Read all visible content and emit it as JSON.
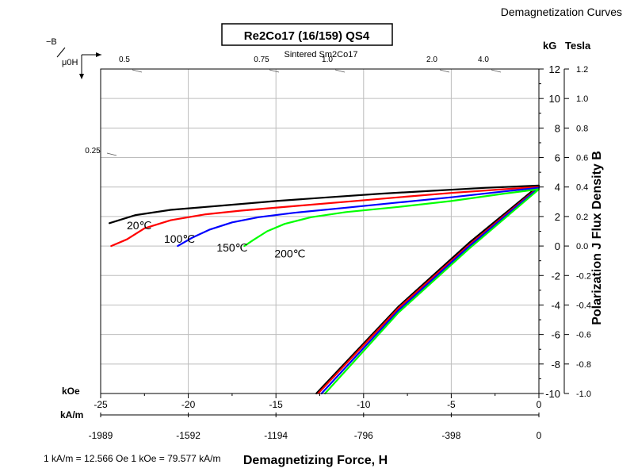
{
  "chart_data": {
    "type": "line",
    "page_title": "Demagnetization Curves",
    "title": "Re2Co17 (16/159) QS4",
    "material_label": "Sintered Sm2Co17",
    "xlabel": "Demagnetizing Force, H",
    "ylabel": "Polarization J Flux Density B",
    "x_unit_primary": "kOe",
    "x_unit_secondary": "kA/m",
    "y_unit_primary": "kG",
    "y_unit_secondary": "Tesla",
    "conversion_note": "1 kA/m = 12.566 Oe 1 kOe = 79.577 kA/m",
    "corner_label_b": "−B",
    "corner_label_h": "μ0H",
    "xlim": [
      -25,
      0
    ],
    "ylim": [
      -10,
      12
    ],
    "x_ticks": [
      "-25",
      "-20",
      "-15",
      "-10",
      "-5",
      "0"
    ],
    "x_ticks_secondary": [
      "-1989",
      "-1592",
      "-1194",
      "-796",
      "-398",
      "0"
    ],
    "y_ticks": [
      "12",
      "10",
      "8",
      "6",
      "4",
      "2",
      "0",
      "-2",
      "-4",
      "-6",
      "-8",
      "-10"
    ],
    "y_ticks_secondary": [
      "1.2",
      "1.0",
      "0.8",
      "0.6",
      "0.4",
      "0.2",
      "0.0",
      "-0.2",
      "-0.4",
      "-0.6",
      "-0.8",
      "-1.0"
    ],
    "permeance_labels": [
      "0.5",
      "0.75",
      "1.0",
      "2.0",
      "4.0",
      "0.25"
    ],
    "series": [
      {
        "name": "20℃",
        "color": "#000000",
        "J": [
          [
            -24.5,
            1.55
          ],
          [
            -23,
            2.1
          ],
          [
            -21,
            2.45
          ],
          [
            -18,
            2.75
          ],
          [
            -15,
            3.05
          ],
          [
            -12,
            3.3
          ],
          [
            -9,
            3.55
          ],
          [
            -6,
            3.75
          ],
          [
            -3,
            3.95
          ],
          [
            0,
            4.1
          ]
        ],
        "B": [
          [
            0,
            4.1
          ],
          [
            -4,
            0.2
          ],
          [
            -8,
            -4.1
          ],
          [
            -12.7,
            -10.0
          ]
        ]
      },
      {
        "name": "100℃",
        "color": "#ff0000",
        "J": [
          [
            -24.4,
            0.0
          ],
          [
            -23.5,
            0.45
          ],
          [
            -22.5,
            1.2
          ],
          [
            -21,
            1.75
          ],
          [
            -19,
            2.15
          ],
          [
            -17,
            2.4
          ],
          [
            -14,
            2.7
          ],
          [
            -11,
            3.0
          ],
          [
            -8,
            3.3
          ],
          [
            -5,
            3.6
          ],
          [
            -2,
            3.85
          ],
          [
            0,
            4.0
          ]
        ],
        "B": [
          [
            0,
            4.0
          ],
          [
            -4,
            0.05
          ],
          [
            -8,
            -4.2
          ],
          [
            -12.6,
            -10.0
          ]
        ]
      },
      {
        "name": "150℃",
        "color": "#0000ff",
        "J": [
          [
            -20.6,
            0.0
          ],
          [
            -19.8,
            0.55
          ],
          [
            -18.8,
            1.1
          ],
          [
            -17.5,
            1.6
          ],
          [
            -16,
            1.95
          ],
          [
            -14,
            2.25
          ],
          [
            -11,
            2.6
          ],
          [
            -8,
            2.95
          ],
          [
            -5,
            3.3
          ],
          [
            -2,
            3.7
          ],
          [
            0,
            3.95
          ]
        ],
        "B": [
          [
            0,
            3.95
          ],
          [
            -4,
            -0.05
          ],
          [
            -8,
            -4.35
          ],
          [
            -12.4,
            -10.0
          ]
        ]
      },
      {
        "name": "200℃",
        "color": "#00ff00",
        "J": [
          [
            -16.8,
            0.0
          ],
          [
            -16.3,
            0.4
          ],
          [
            -15.5,
            1.0
          ],
          [
            -14.5,
            1.5
          ],
          [
            -13,
            1.95
          ],
          [
            -11,
            2.3
          ],
          [
            -8,
            2.65
          ],
          [
            -5,
            3.05
          ],
          [
            -2,
            3.55
          ],
          [
            0,
            3.85
          ]
        ],
        "B": [
          [
            0,
            3.85
          ],
          [
            -4,
            -0.2
          ],
          [
            -8,
            -4.5
          ],
          [
            -12.2,
            -10.0
          ]
        ]
      }
    ],
    "grid": true,
    "legend": "inline labels near curves"
  }
}
